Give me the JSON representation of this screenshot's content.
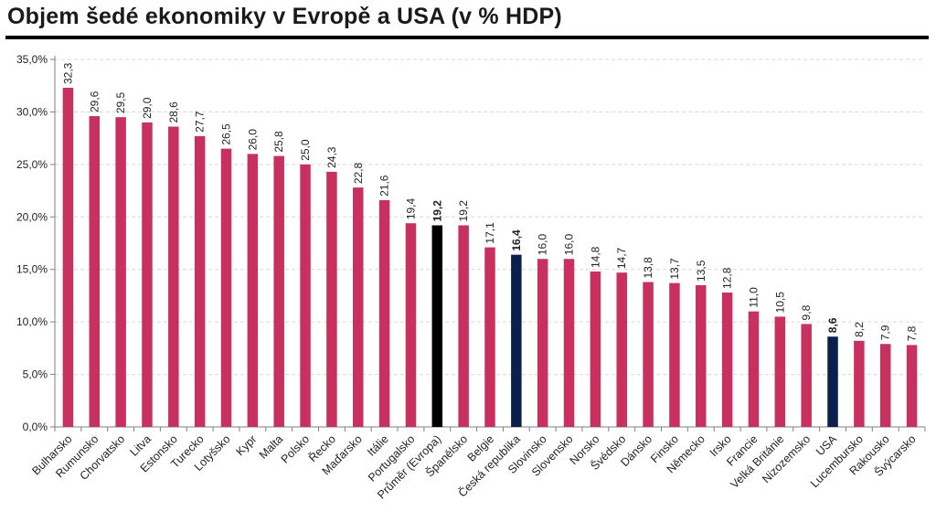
{
  "title": "Objem šedé ekonomiky v Evropě a USA (v % HDP)",
  "colors": {
    "default": "#c8315f",
    "europe_average": "#000000",
    "highlight": "#0b1f4e",
    "grid": "#d9d9d9",
    "axis": "#7f7f7f",
    "title_rule": "#000000"
  },
  "chart_data": {
    "type": "bar",
    "title": "Objem šedé ekonomiky v Evropě a USA (v % HDP)",
    "xlabel": "",
    "ylabel": "",
    "ylim": [
      0,
      35
    ],
    "yticks": [
      0,
      5,
      10,
      15,
      20,
      25,
      30,
      35
    ],
    "ytick_labels": [
      "0,0%",
      "5,0%",
      "10,0%",
      "15,0%",
      "20,0%",
      "25,0%",
      "30,0%",
      "35,0%"
    ],
    "grid": true,
    "legend": "none",
    "categories": [
      "Bulharsko",
      "Rumunsko",
      "Chorvatsko",
      "Litva",
      "Estonsko",
      "Turecko",
      "Lotyšsko",
      "Kypr",
      "Malta",
      "Polsko",
      "Řecko",
      "Maďarsko",
      "Itálie",
      "Portugalsko",
      "Průměr (Evropa)",
      "Španělsko",
      "Belgie",
      "Česká republika",
      "Slovinsko",
      "Slovensko",
      "Norsko",
      "Švédsko",
      "Dánsko",
      "Finsko",
      "Německo",
      "Irsko",
      "Francie",
      "Velká Británie",
      "Nizozemsko",
      "USA",
      "Lucembursko",
      "Rakousko",
      "Švýcarsko"
    ],
    "values": [
      32.3,
      29.6,
      29.5,
      29.0,
      28.6,
      27.7,
      26.5,
      26.0,
      25.8,
      25.0,
      24.3,
      22.8,
      21.6,
      19.4,
      19.2,
      19.2,
      17.1,
      16.4,
      16.0,
      16.0,
      14.8,
      14.7,
      13.8,
      13.7,
      13.5,
      12.8,
      11.0,
      10.5,
      9.8,
      8.6,
      8.2,
      7.9,
      7.8
    ],
    "value_labels": [
      "32,3",
      "29,6",
      "29,5",
      "29,0",
      "28,6",
      "27,7",
      "26,5",
      "26,0",
      "25,8",
      "25,0",
      "24,3",
      "22,8",
      "21,6",
      "19,4",
      "19,2",
      "19,2",
      "17,1",
      "16,4",
      "16,0",
      "16,0",
      "14,8",
      "14,7",
      "13,8",
      "13,7",
      "13,5",
      "12,8",
      "11,0",
      "10,5",
      "9,8",
      "8,6",
      "8,2",
      "7,9",
      "7,8"
    ],
    "bar_color_roles": [
      "default",
      "default",
      "default",
      "default",
      "default",
      "default",
      "default",
      "default",
      "default",
      "default",
      "default",
      "default",
      "default",
      "default",
      "europe_average",
      "default",
      "default",
      "highlight",
      "default",
      "default",
      "default",
      "default",
      "default",
      "default",
      "default",
      "default",
      "default",
      "default",
      "default",
      "highlight",
      "default",
      "default",
      "default"
    ],
    "bold_value_labels": [
      "Průměr (Evropa)",
      "Česká republika",
      "USA"
    ]
  }
}
